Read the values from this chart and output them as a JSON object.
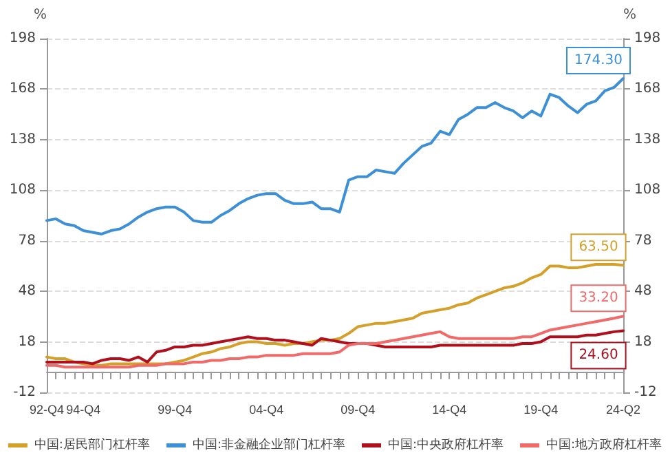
{
  "chart_data": {
    "type": "line",
    "categories": [
      "92-Q4",
      null,
      null,
      null,
      "94-Q4",
      null,
      null,
      null,
      null,
      null,
      null,
      null,
      null,
      null,
      "99-Q4",
      null,
      null,
      null,
      null,
      null,
      null,
      null,
      null,
      null,
      "04-Q4",
      null,
      null,
      null,
      null,
      null,
      null,
      null,
      null,
      null,
      "09-Q4",
      null,
      null,
      null,
      null,
      null,
      null,
      null,
      null,
      null,
      "14-Q4",
      null,
      null,
      null,
      null,
      null,
      null,
      null,
      null,
      null,
      "19-Q4",
      null,
      null,
      null,
      null,
      null,
      null,
      null,
      null,
      "24-Q2"
    ],
    "series": [
      {
        "name": "中国:居民部门杠杆率",
        "color": "#d4a02a",
        "values": [
          9,
          8,
          8,
          6,
          5,
          4,
          4,
          5,
          5,
          5,
          5,
          5,
          5,
          5,
          6,
          7,
          9,
          11,
          12,
          14,
          15,
          17,
          18,
          18,
          17,
          17,
          16,
          17,
          17,
          18,
          19,
          19,
          20,
          23,
          27,
          28,
          29,
          29,
          30,
          31,
          32,
          35,
          36,
          37,
          38,
          40,
          41,
          44,
          46,
          48,
          50,
          51,
          53,
          56,
          58,
          63,
          63,
          62,
          62,
          63,
          64,
          64,
          64,
          63.5
        ],
        "value_labels": [
          null,
          null,
          null,
          null,
          null,
          null,
          null,
          null,
          null,
          null,
          null,
          null,
          null,
          null,
          null,
          null,
          null,
          null,
          null,
          null,
          null,
          null,
          null,
          null,
          null,
          null,
          null,
          null,
          null,
          null,
          null,
          null,
          null,
          null,
          null,
          null,
          null,
          null,
          null,
          null,
          null,
          null,
          null,
          null,
          null,
          null,
          null,
          null,
          null,
          null,
          null,
          null,
          null,
          null,
          null,
          null,
          null,
          null,
          null,
          null,
          null,
          null,
          null,
          "63.50"
        ]
      },
      {
        "name": "中国:非金融企业部门杠杆率",
        "color": "#3d8fd6",
        "values": [
          90,
          91,
          88,
          87,
          84,
          83,
          82,
          84,
          85,
          88,
          92,
          95,
          97,
          98,
          98,
          95,
          90,
          89,
          89,
          93,
          96,
          100,
          103,
          105,
          106,
          106,
          102,
          100,
          100,
          101,
          97,
          97,
          95,
          114,
          116,
          116,
          120,
          119,
          118,
          124,
          129,
          134,
          136,
          143,
          141,
          150,
          153,
          157,
          157,
          160,
          157,
          155,
          151,
          155,
          152,
          165,
          163,
          158,
          154,
          159,
          161,
          167,
          169,
          174.3
        ],
        "value_labels": [
          null,
          null,
          null,
          null,
          null,
          null,
          null,
          null,
          null,
          null,
          null,
          null,
          null,
          null,
          null,
          null,
          null,
          null,
          null,
          null,
          null,
          null,
          null,
          null,
          null,
          null,
          null,
          null,
          null,
          null,
          null,
          null,
          null,
          null,
          null,
          null,
          null,
          null,
          null,
          null,
          null,
          null,
          null,
          null,
          null,
          null,
          null,
          null,
          null,
          null,
          null,
          null,
          null,
          null,
          null,
          null,
          null,
          null,
          null,
          null,
          null,
          null,
          null,
          "174.30"
        ]
      },
      {
        "name": "中国:中央政府杠杆率",
        "color": "#b0101e",
        "values": [
          6,
          6,
          6,
          6,
          6,
          5,
          7,
          8,
          8,
          7,
          9,
          6,
          12,
          13,
          15,
          15,
          16,
          16,
          17,
          18,
          19,
          20,
          21,
          20,
          20,
          19,
          19,
          18,
          17,
          16,
          20,
          19,
          18,
          17,
          17,
          17,
          16,
          15,
          15,
          15,
          15,
          15,
          15,
          16,
          16,
          16,
          16,
          16,
          16,
          16,
          16,
          16,
          17,
          17,
          18,
          21,
          21,
          21,
          21,
          22,
          22,
          23,
          24,
          24.6
        ],
        "value_labels": [
          null,
          null,
          null,
          null,
          null,
          null,
          null,
          null,
          null,
          null,
          null,
          null,
          null,
          null,
          null,
          null,
          null,
          null,
          null,
          null,
          null,
          null,
          null,
          null,
          null,
          null,
          null,
          null,
          null,
          null,
          null,
          null,
          null,
          null,
          null,
          null,
          null,
          null,
          null,
          null,
          null,
          null,
          null,
          null,
          null,
          null,
          null,
          null,
          null,
          null,
          null,
          null,
          null,
          null,
          null,
          null,
          null,
          null,
          null,
          null,
          null,
          null,
          null,
          "24.60"
        ]
      },
      {
        "name": "中国:地方政府杠杆率",
        "color": "#f06a6a",
        "values": [
          4,
          4,
          3,
          3,
          3,
          3,
          3,
          3,
          3,
          3,
          4,
          4,
          4,
          5,
          5,
          5,
          6,
          6,
          7,
          7,
          8,
          8,
          9,
          9,
          10,
          10,
          10,
          10,
          11,
          11,
          11,
          11,
          12,
          16,
          17,
          17,
          17,
          18,
          19,
          20,
          21,
          22,
          23,
          24,
          21,
          20,
          20,
          20,
          20,
          20,
          20,
          20,
          21,
          21,
          23,
          25,
          26,
          27,
          28,
          29,
          30,
          31,
          32,
          33.2
        ],
        "value_labels": [
          null,
          null,
          null,
          null,
          null,
          null,
          null,
          null,
          null,
          null,
          null,
          null,
          null,
          null,
          null,
          null,
          null,
          null,
          null,
          null,
          null,
          null,
          null,
          null,
          null,
          null,
          null,
          null,
          null,
          null,
          null,
          null,
          null,
          null,
          null,
          null,
          null,
          null,
          null,
          null,
          null,
          null,
          null,
          null,
          null,
          null,
          null,
          null,
          null,
          null,
          null,
          null,
          null,
          null,
          null,
          null,
          null,
          null,
          null,
          null,
          null,
          null,
          null,
          "33.20"
        ]
      }
    ],
    "ylabel": "%",
    "y2label": "%",
    "ylim": [
      -12,
      198
    ],
    "yticks": [
      -12,
      18,
      48,
      78,
      108,
      138,
      168,
      198
    ],
    "y2lim": [
      -12,
      198
    ],
    "y2ticks": [
      -12,
      18,
      48,
      78,
      108,
      138,
      168,
      198
    ],
    "grid": "y",
    "legend": "bottom",
    "marker": "none",
    "line_style": "solid"
  }
}
